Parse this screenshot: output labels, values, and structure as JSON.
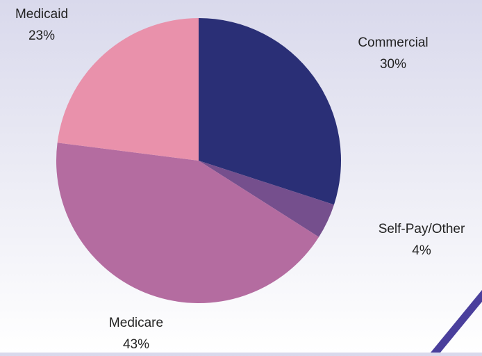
{
  "chart_data": {
    "type": "pie",
    "slices": [
      {
        "label": "Commercial",
        "value": 30,
        "value_label": "30%",
        "color": "#2a2f76"
      },
      {
        "label": "Self-Pay/Other",
        "value": 4,
        "value_label": "4%",
        "color": "#754f8d"
      },
      {
        "label": "Medicare",
        "value": 43,
        "value_label": "43%",
        "color": "#b46ca0"
      },
      {
        "label": "Medicaid",
        "value": 23,
        "value_label": "23%",
        "color": "#e991ab"
      }
    ],
    "start": "12 o'clock",
    "direction": "clockwise",
    "legend": "none"
  },
  "decoration": {
    "accent_color": "#4a3f9c"
  }
}
